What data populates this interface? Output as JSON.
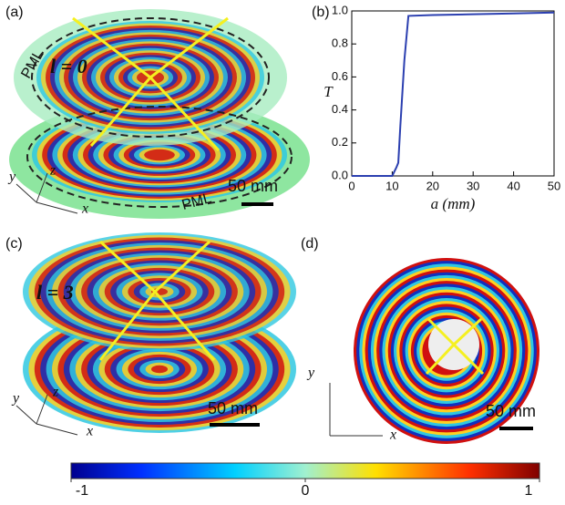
{
  "panel_a": {
    "label": "(a)",
    "pml_top": "PML",
    "pml_bottom": "PML",
    "mode": "l = 0",
    "scale": "50 mm",
    "axis_x": "x",
    "axis_y": "y",
    "axis_z": "z"
  },
  "chart_data": {
    "type": "line",
    "panel_label": "(b)",
    "xlabel": "a (mm)",
    "ylabel": "T",
    "x": [
      0,
      10,
      11,
      11.5,
      12,
      13,
      14,
      20,
      30,
      40,
      50
    ],
    "series": [
      {
        "name": "T",
        "color": "#2b3fb0",
        "values": [
          0,
          0,
          0.05,
          0.08,
          0.3,
          0.7,
          0.97,
          0.975,
          0.98,
          0.985,
          0.99
        ]
      }
    ],
    "xlim": [
      0,
      50
    ],
    "ylim": [
      0,
      1
    ],
    "xticks": [
      0,
      10,
      20,
      30,
      40,
      50
    ],
    "yticks": [
      {
        "value": 0,
        "label": "0.0"
      },
      0.2,
      0.4,
      0.6,
      0.8,
      {
        "value": 1,
        "label": "1.0"
      }
    ]
  },
  "panel_c": {
    "label": "(c)",
    "mode": "l = 3",
    "scale": "50 mm",
    "axis_x": "x",
    "axis_y": "y",
    "axis_z": "z"
  },
  "panel_d": {
    "label": "(d)",
    "scale": "50 mm",
    "axis_x": "x",
    "axis_y": "y"
  },
  "colorbar": {
    "lim": [
      -1,
      1
    ],
    "ticks": [
      -1,
      0,
      1
    ]
  }
}
